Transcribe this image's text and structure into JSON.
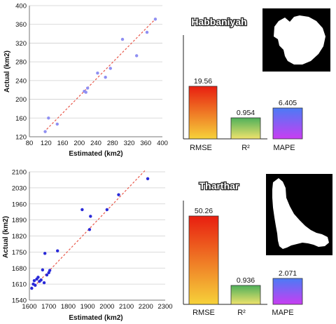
{
  "colors": {
    "scatter1": "#8f8ff2",
    "scatter2": "#2a2ad8",
    "trend": "#e8584a",
    "grid": "#cfcfcf",
    "rmse_top": "#e81e10",
    "rmse_bottom": "#f6d23a",
    "r2_top": "#4fb05a",
    "r2_bottom": "#efe36c",
    "mape_top": "#4b7bf5",
    "mape_bottom": "#c93df2"
  },
  "chart_data": [
    {
      "type": "scatter",
      "xlabel": "Estimated (km2)",
      "ylabel": "Actual (km2)",
      "xlim": [
        80,
        400
      ],
      "ylim": [
        120,
        400
      ],
      "xticks": [
        80,
        120,
        160,
        200,
        240,
        280,
        320,
        360,
        400
      ],
      "yticks": [
        120,
        160,
        200,
        240,
        280,
        320,
        360,
        400
      ],
      "grid": "horizontal",
      "points": [
        [
          118,
          131
        ],
        [
          126,
          160
        ],
        [
          147,
          147
        ],
        [
          212,
          217
        ],
        [
          216,
          215
        ],
        [
          220,
          224
        ],
        [
          244,
          256
        ],
        [
          263,
          247
        ],
        [
          275,
          266
        ],
        [
          304,
          328
        ],
        [
          338,
          293
        ],
        [
          363,
          343
        ],
        [
          383,
          371
        ]
      ],
      "trendline": [
        [
          115,
          130
        ],
        [
          386,
          374
        ]
      ]
    },
    {
      "type": "bar",
      "title": "Habbaniyah",
      "categories": [
        "RMSE",
        "R²",
        "MAPE"
      ],
      "values": [
        19.56,
        0.954,
        6.405
      ],
      "value_labels": [
        "19.56",
        "0.954",
        "6.405"
      ]
    },
    {
      "type": "scatter",
      "xlabel": "Estimated (km2)",
      "ylabel": "Actual (km2)",
      "xlim": [
        1600,
        2300
      ],
      "ylim": [
        1540,
        2100
      ],
      "xticks": [
        1600,
        1700,
        1800,
        1900,
        2000,
        2100,
        2200,
        2300
      ],
      "yticks": [
        1540,
        1610,
        1680,
        1750,
        1820,
        1890,
        1960,
        2030,
        2100
      ],
      "grid": "horizontal",
      "points": [
        [
          1612,
          1592
        ],
        [
          1620,
          1610
        ],
        [
          1625,
          1625
        ],
        [
          1630,
          1605
        ],
        [
          1638,
          1632
        ],
        [
          1645,
          1640
        ],
        [
          1652,
          1622
        ],
        [
          1660,
          1628
        ],
        [
          1668,
          1672
        ],
        [
          1676,
          1616
        ],
        [
          1680,
          1744
        ],
        [
          1690,
          1650
        ],
        [
          1700,
          1660
        ],
        [
          1705,
          1670
        ],
        [
          1745,
          1755
        ],
        [
          1872,
          1935
        ],
        [
          1910,
          1848
        ],
        [
          1915,
          1906
        ],
        [
          2000,
          1935
        ],
        [
          2060,
          2000
        ],
        [
          2210,
          2070
        ]
      ],
      "trendline": [
        [
          1625,
          1600
        ],
        [
          2195,
          2105
        ]
      ]
    },
    {
      "type": "bar",
      "title": "Tharthar",
      "categories": [
        "RMSE",
        "R²",
        "MAPE"
      ],
      "values": [
        50.26,
        0.936,
        2.071
      ],
      "value_labels": [
        "50.26",
        "0.936",
        "2.071"
      ]
    }
  ]
}
